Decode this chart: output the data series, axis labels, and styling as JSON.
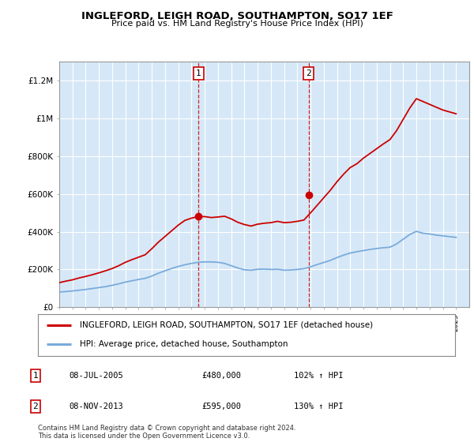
{
  "title": "INGLEFORD, LEIGH ROAD, SOUTHAMPTON, SO17 1EF",
  "subtitle": "Price paid vs. HM Land Registry's House Price Index (HPI)",
  "ylim": [
    0,
    1300000
  ],
  "yticks": [
    0,
    200000,
    400000,
    600000,
    800000,
    1000000,
    1200000
  ],
  "ytick_labels": [
    "£0",
    "£200K",
    "£400K",
    "£600K",
    "£800K",
    "£1M",
    "£1.2M"
  ],
  "background_color": "#ffffff",
  "plot_bg_color": "#d6e8f7",
  "grid_color": "#ffffff",
  "red_line_color": "#cc0000",
  "blue_line_color": "#7aabdb",
  "marker1_x": 2005.54,
  "marker1_y": 480000,
  "marker2_x": 2013.85,
  "marker2_y": 595000,
  "vline1_x": 2005.54,
  "vline2_x": 2013.85,
  "legend_red_label": "INGLEFORD, LEIGH ROAD, SOUTHAMPTON, SO17 1EF (detached house)",
  "legend_blue_label": "HPI: Average price, detached house, Southampton",
  "table_rows": [
    [
      "1",
      "08-JUL-2005",
      "£480,000",
      "102% ↑ HPI"
    ],
    [
      "2",
      "08-NOV-2013",
      "£595,000",
      "130% ↑ HPI"
    ]
  ],
  "footnote": "Contains HM Land Registry data © Crown copyright and database right 2024.\nThis data is licensed under the Open Government Licence v3.0.",
  "xmin": 1995,
  "xmax": 2026,
  "years": [
    1995.0,
    1995.5,
    1996.0,
    1996.5,
    1997.0,
    1997.5,
    1998.0,
    1998.5,
    1999.0,
    1999.5,
    2000.0,
    2000.5,
    2001.0,
    2001.5,
    2002.0,
    2002.5,
    2003.0,
    2003.5,
    2004.0,
    2004.5,
    2005.0,
    2005.5,
    2006.0,
    2006.5,
    2007.0,
    2007.5,
    2008.0,
    2008.5,
    2009.0,
    2009.5,
    2010.0,
    2010.5,
    2011.0,
    2011.5,
    2012.0,
    2012.5,
    2013.0,
    2013.5,
    2014.0,
    2014.5,
    2015.0,
    2015.5,
    2016.0,
    2016.5,
    2017.0,
    2017.5,
    2018.0,
    2018.5,
    2019.0,
    2019.5,
    2020.0,
    2020.5,
    2021.0,
    2021.5,
    2022.0,
    2022.5,
    2023.0,
    2023.5,
    2024.0,
    2024.5,
    2025.0
  ],
  "red_values": [
    130000,
    138000,
    145000,
    155000,
    163000,
    172000,
    182000,
    193000,
    205000,
    220000,
    238000,
    252000,
    265000,
    278000,
    310000,
    345000,
    375000,
    405000,
    435000,
    460000,
    472000,
    480000,
    480000,
    475000,
    478000,
    482000,
    468000,
    450000,
    438000,
    430000,
    440000,
    445000,
    448000,
    455000,
    448000,
    450000,
    455000,
    462000,
    500000,
    540000,
    580000,
    620000,
    665000,
    705000,
    740000,
    760000,
    790000,
    815000,
    840000,
    865000,
    888000,
    935000,
    995000,
    1055000,
    1105000,
    1090000,
    1075000,
    1060000,
    1045000,
    1035000,
    1025000
  ],
  "blue_values": [
    80000,
    83000,
    86000,
    90000,
    94000,
    99000,
    104000,
    109000,
    116000,
    124000,
    133000,
    140000,
    147000,
    153000,
    165000,
    180000,
    193000,
    205000,
    216000,
    225000,
    232000,
    238000,
    240000,
    240000,
    238000,
    232000,
    220000,
    208000,
    198000,
    196000,
    201000,
    202000,
    200000,
    201000,
    196000,
    197000,
    200000,
    204000,
    214000,
    226000,
    237000,
    248000,
    263000,
    276000,
    287000,
    294000,
    300000,
    306000,
    311000,
    315000,
    318000,
    335000,
    360000,
    385000,
    402000,
    392000,
    388000,
    382000,
    378000,
    374000,
    370000
  ]
}
